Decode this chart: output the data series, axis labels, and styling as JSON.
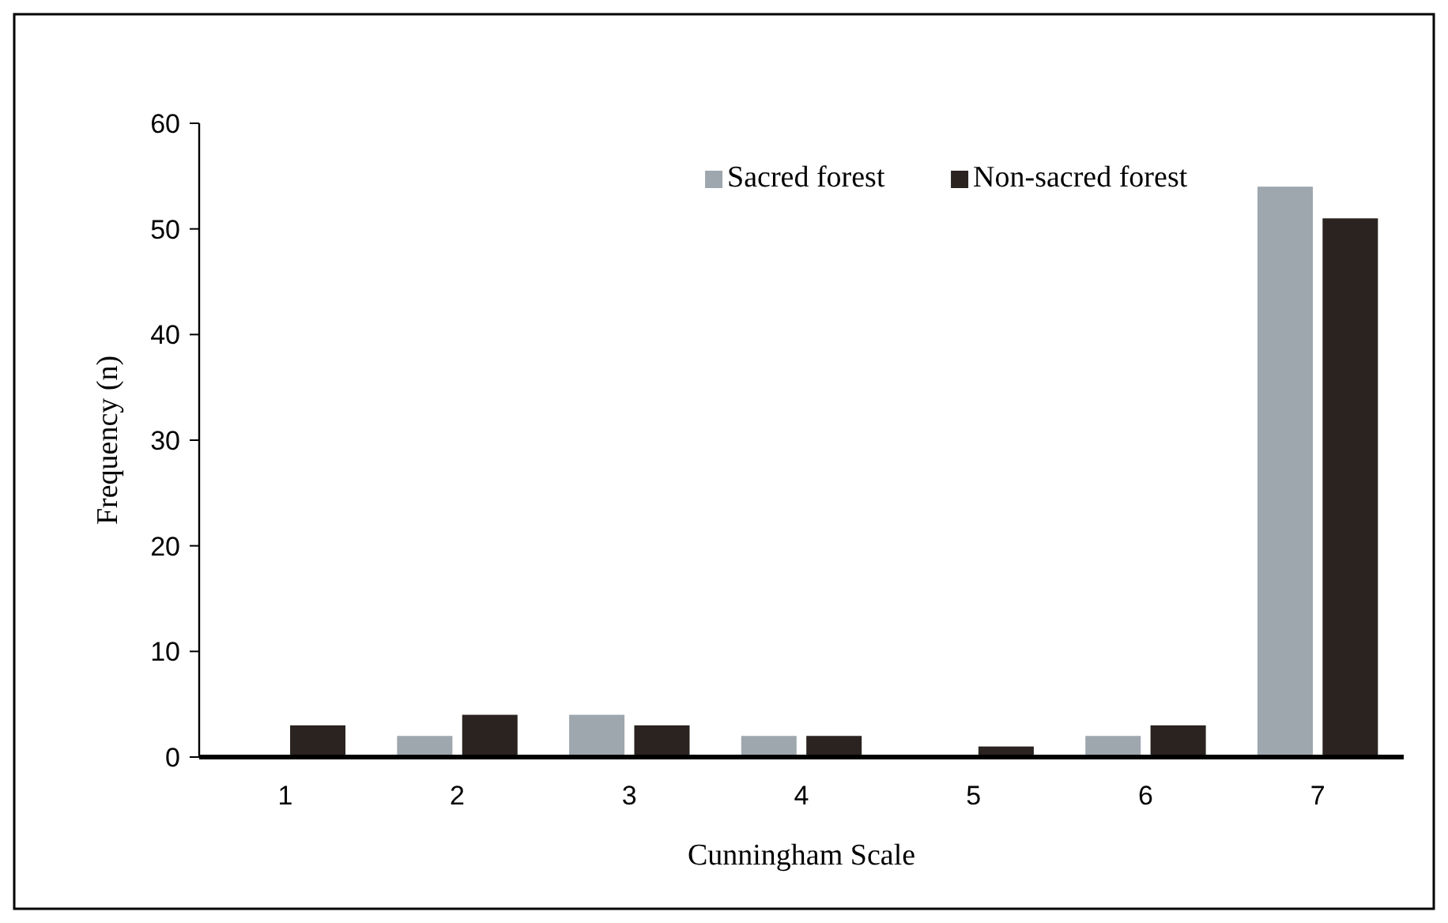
{
  "chart_data": {
    "type": "bar",
    "xlabel": "Cunningham Scale",
    "ylabel": "Frequency (n)",
    "categories": [
      "1",
      "2",
      "3",
      "4",
      "5",
      "6",
      "7"
    ],
    "series": [
      {
        "name": "Sacred forest",
        "color": "#9ea7ae",
        "values": [
          0,
          2,
          4,
          2,
          0,
          2,
          54
        ]
      },
      {
        "name": "Non-sacred forest",
        "color": "#2a2320",
        "values": [
          3,
          4,
          3,
          2,
          1,
          3,
          51
        ]
      }
    ],
    "ylim": [
      0,
      60
    ],
    "yticks": [
      0,
      10,
      20,
      30,
      40,
      50,
      60
    ],
    "legend": "top",
    "grid": false
  }
}
